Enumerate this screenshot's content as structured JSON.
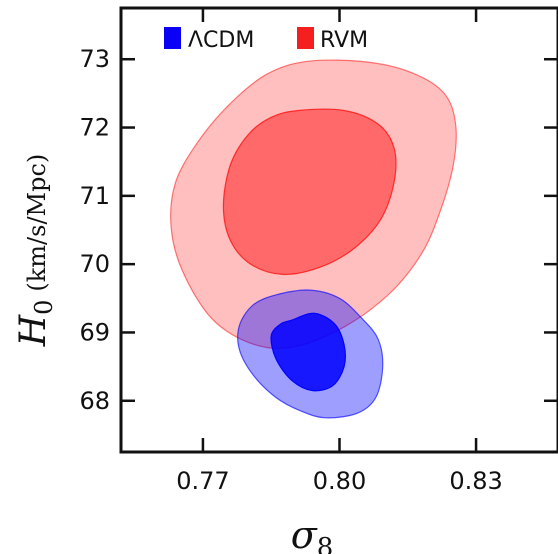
{
  "chart_data": {
    "type": "contour",
    "xlabel": {
      "symbol": "σ",
      "sub": "8"
    },
    "ylabel": {
      "symbol": "H",
      "sub": "0",
      "units": "(km/s/Mpc)"
    },
    "xlim": [
      0.752,
      0.848
    ],
    "ylim": [
      67.25,
      73.75
    ],
    "x_ticks": [
      {
        "value": 0.77,
        "label": "0.77"
      },
      {
        "value": 0.8,
        "label": "0.80"
      },
      {
        "value": 0.83,
        "label": "0.83"
      }
    ],
    "y_ticks": [
      {
        "value": 68,
        "label": "68"
      },
      {
        "value": 69,
        "label": "69"
      },
      {
        "value": 70,
        "label": "70"
      },
      {
        "value": 71,
        "label": "71"
      },
      {
        "value": 72,
        "label": "72"
      },
      {
        "value": 73,
        "label": "73"
      }
    ],
    "legend": {
      "position": "top-left",
      "entries": [
        {
          "name": "ΛCDM",
          "color": "#0a00f5"
        },
        {
          "name": "RVM",
          "color": "#f51f1f"
        }
      ]
    },
    "series": [
      {
        "name": "RVM",
        "color": "#ff0000",
        "contours": [
          {
            "level": "2σ",
            "opacity": 0.25,
            "points": [
              [
                0.793,
                72.97
              ],
              [
                0.806,
                72.96
              ],
              [
                0.816,
                72.8
              ],
              [
                0.823,
                72.5
              ],
              [
                0.8255,
                72.05
              ],
              [
                0.825,
                71.45
              ],
              [
                0.822,
                70.75
              ],
              [
                0.818,
                70.15
              ],
              [
                0.811,
                69.57
              ],
              [
                0.801,
                69.08
              ],
              [
                0.79,
                68.79
              ],
              [
                0.781,
                68.83
              ],
              [
                0.772,
                69.2
              ],
              [
                0.7655,
                69.9
              ],
              [
                0.763,
                70.55
              ],
              [
                0.764,
                71.2
              ],
              [
                0.769,
                71.8
              ],
              [
                0.776,
                72.35
              ],
              [
                0.784,
                72.78
              ]
            ]
          },
          {
            "level": "1σ",
            "opacity": 0.45,
            "points": [
              [
                0.791,
                72.25
              ],
              [
                0.801,
                72.25
              ],
              [
                0.8085,
                72.05
              ],
              [
                0.812,
                71.7
              ],
              [
                0.812,
                71.2
              ],
              [
                0.809,
                70.65
              ],
              [
                0.803,
                70.22
              ],
              [
                0.7955,
                69.95
              ],
              [
                0.7875,
                69.85
              ],
              [
                0.7805,
                70.0
              ],
              [
                0.776,
                70.35
              ],
              [
                0.7745,
                70.85
              ],
              [
                0.776,
                71.45
              ],
              [
                0.78,
                71.9
              ],
              [
                0.785,
                72.15
              ]
            ]
          }
        ]
      },
      {
        "name": "ΛCDM",
        "color": "#0000ff",
        "contours": [
          {
            "level": "2σ",
            "opacity": 0.38,
            "points": [
              [
                0.786,
                69.55
              ],
              [
                0.7935,
                69.62
              ],
              [
                0.8,
                69.5
              ],
              [
                0.805,
                69.2
              ],
              [
                0.8085,
                68.9
              ],
              [
                0.8095,
                68.5
              ],
              [
                0.808,
                68.05
              ],
              [
                0.804,
                67.82
              ],
              [
                0.797,
                67.75
              ],
              [
                0.7915,
                67.85
              ],
              [
                0.786,
                68.05
              ],
              [
                0.781,
                68.38
              ],
              [
                0.778,
                68.75
              ],
              [
                0.778,
                69.1
              ],
              [
                0.781,
                69.4
              ]
            ]
          },
          {
            "level": "1σ",
            "opacity": 0.85,
            "points": [
              [
                0.7895,
                69.18
              ],
              [
                0.7945,
                69.28
              ],
              [
                0.799,
                69.12
              ],
              [
                0.801,
                68.82
              ],
              [
                0.801,
                68.5
              ],
              [
                0.7985,
                68.22
              ],
              [
                0.794,
                68.15
              ],
              [
                0.7895,
                68.3
              ],
              [
                0.786,
                68.62
              ],
              [
                0.785,
                68.95
              ],
              [
                0.787,
                69.12
              ]
            ]
          }
        ]
      }
    ]
  }
}
